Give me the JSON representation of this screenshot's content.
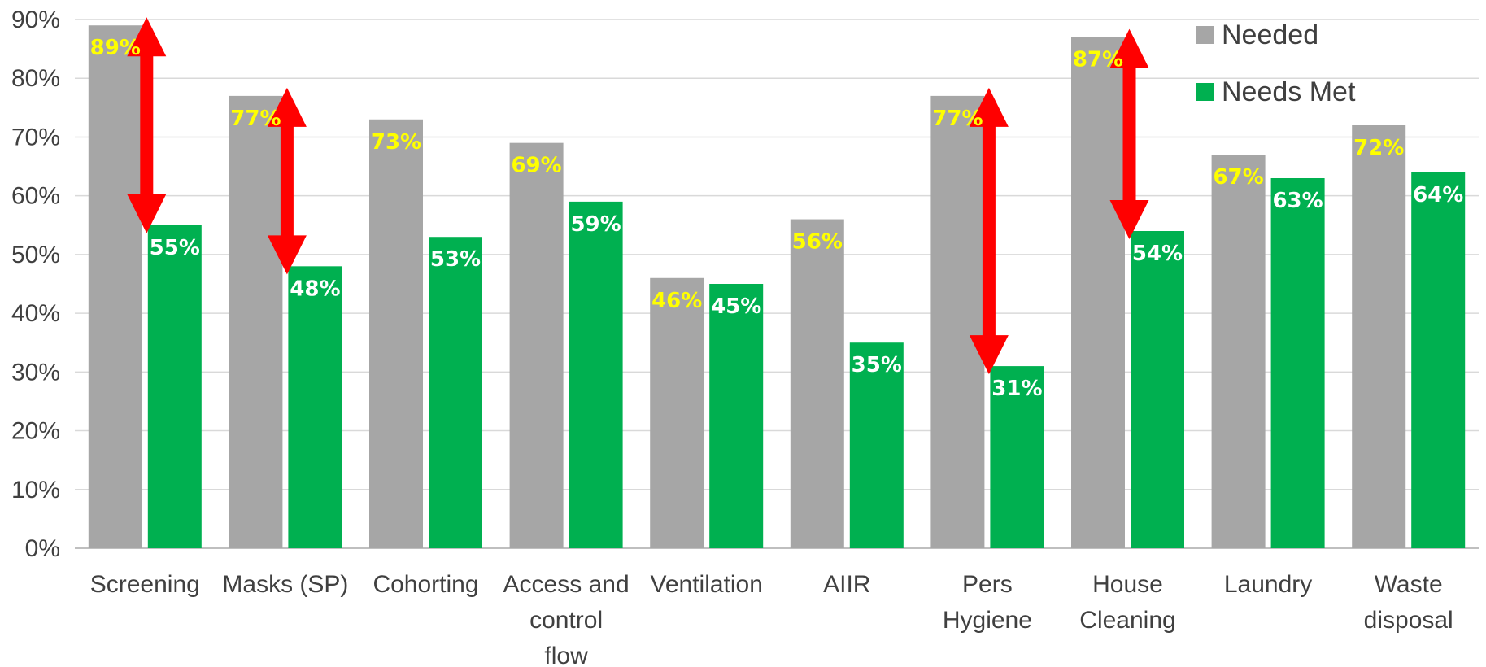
{
  "chart_data": {
    "type": "bar",
    "categories": [
      [
        "Screening"
      ],
      [
        "Masks (SP)"
      ],
      [
        "Cohorting"
      ],
      [
        "Access and",
        "control",
        "flow"
      ],
      [
        "Ventilation"
      ],
      [
        "AIIR"
      ],
      [
        "Pers",
        "Hygiene"
      ],
      [
        "House",
        "Cleaning"
      ],
      [
        "Laundry"
      ],
      [
        "Waste",
        "disposal"
      ]
    ],
    "series": [
      {
        "name": "Needed",
        "color": "#a6a6a6",
        "label_color": "#ffff00",
        "values": [
          89,
          77,
          73,
          69,
          46,
          56,
          77,
          87,
          67,
          72
        ],
        "labels": [
          "89%",
          "77%",
          "73%",
          "69%",
          "46%",
          "56%",
          "77%",
          "87%",
          "67%",
          "72%"
        ]
      },
      {
        "name": "Needs Met",
        "color": "#00b050",
        "label_color": "#ffffff",
        "values": [
          55,
          48,
          53,
          59,
          45,
          35,
          31,
          54,
          63,
          64
        ],
        "labels": [
          "55%",
          "48%",
          "53%",
          "59%",
          "45%",
          "35%",
          "31%",
          "54%",
          "63%",
          "64%"
        ]
      }
    ],
    "ylim": [
      0,
      90
    ],
    "yticks": [
      "0%",
      "10%",
      "20%",
      "30%",
      "40%",
      "50%",
      "60%",
      "70%",
      "80%",
      "90%"
    ],
    "grid": true,
    "legend": "top-right",
    "gap_arrows": {
      "color": "#ff0000",
      "categories": [
        0,
        1,
        6,
        7
      ]
    }
  }
}
